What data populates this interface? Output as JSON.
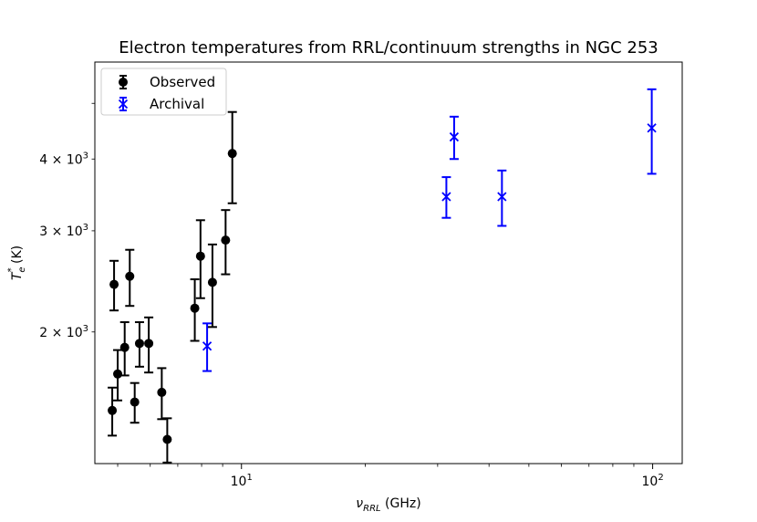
{
  "chart_data": {
    "type": "scatter",
    "title": "Electron temperatures from RRL/continuum strengths in NGC 253",
    "xlabel": "ν_RRL (GHz)",
    "xlabel_main": "ν",
    "xlabel_sub": "RRL",
    "xlabel_rest": " (GHz)",
    "ylabel": "T_e^* (K)",
    "ylabel_main": "T",
    "ylabel_sub": "e",
    "ylabel_sup": "*",
    "ylabel_rest": " (K)",
    "xscale": "log",
    "yscale": "log",
    "xlim": [
      4.4,
      118
    ],
    "ylim": [
      1180,
      5900
    ],
    "x_major_ticks": [
      {
        "value": 10,
        "base": "10",
        "exp": "1"
      },
      {
        "value": 100,
        "base": "10",
        "exp": "2"
      }
    ],
    "y_ticks": [
      {
        "value": 2000,
        "mant": "2 × 10",
        "exp": "3"
      },
      {
        "value": 3000,
        "mant": "3 × 10",
        "exp": "3"
      },
      {
        "value": 4000,
        "mant": "4 × 10",
        "exp": "3"
      }
    ],
    "legend_position": "top-left",
    "series": [
      {
        "name": "Observed",
        "marker": "circle",
        "color": "#000000",
        "points": [
          {
            "x": 4.85,
            "y": 1460,
            "err": 140
          },
          {
            "x": 4.9,
            "y": 2420,
            "err": 240
          },
          {
            "x": 5.0,
            "y": 1690,
            "err": 170
          },
          {
            "x": 5.2,
            "y": 1880,
            "err": 200
          },
          {
            "x": 5.35,
            "y": 2500,
            "err": 280
          },
          {
            "x": 5.5,
            "y": 1510,
            "err": 120
          },
          {
            "x": 5.65,
            "y": 1910,
            "err": 170
          },
          {
            "x": 5.95,
            "y": 1910,
            "err": 210
          },
          {
            "x": 6.4,
            "y": 1570,
            "err": 160
          },
          {
            "x": 6.6,
            "y": 1300,
            "err": 115
          },
          {
            "x": 7.7,
            "y": 2200,
            "err": 270
          },
          {
            "x": 7.95,
            "y": 2710,
            "err": 420
          },
          {
            "x": 8.5,
            "y": 2440,
            "err": 400
          },
          {
            "x": 9.15,
            "y": 2890,
            "err": 370
          },
          {
            "x": 9.5,
            "y": 4090,
            "err": 740
          }
        ]
      },
      {
        "name": "Archival",
        "marker": "x",
        "color": "#0000ff",
        "points": [
          {
            "x": 8.25,
            "y": 1890,
            "err": 180
          },
          {
            "x": 31.5,
            "y": 3440,
            "err": 280
          },
          {
            "x": 32.9,
            "y": 4370,
            "err": 370
          },
          {
            "x": 43.0,
            "y": 3440,
            "err": 380
          },
          {
            "x": 99.5,
            "y": 4530,
            "err": 760
          }
        ]
      }
    ]
  }
}
